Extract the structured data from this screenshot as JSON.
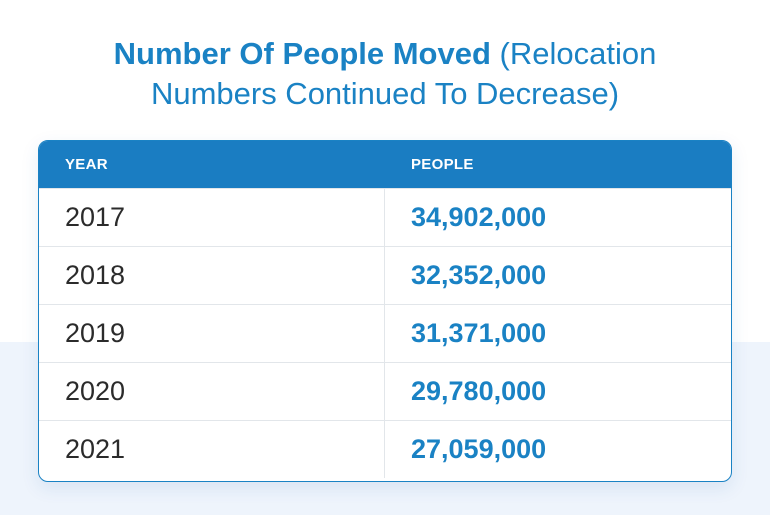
{
  "title": {
    "bold": "Number Of People Moved",
    "regular_line1": " (Relocation",
    "regular_line2": "Numbers Continued To Decrease)"
  },
  "table": {
    "headers": {
      "year": "YEAR",
      "people": "PEOPLE"
    },
    "rows": [
      {
        "year": "2017",
        "people": "34,902,000"
      },
      {
        "year": "2018",
        "people": "32,352,000"
      },
      {
        "year": "2019",
        "people": "31,371,000"
      },
      {
        "year": "2020",
        "people": "29,780,000"
      },
      {
        "year": "2021",
        "people": "27,059,000"
      }
    ]
  },
  "colors": {
    "accent": "#1a82c4",
    "header_bg": "#1a7dc2",
    "band_bg": "#eef4fc"
  }
}
